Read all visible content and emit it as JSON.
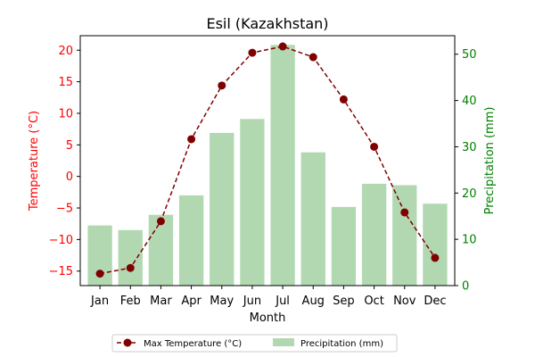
{
  "chart_data": {
    "type": "bar+line",
    "title": "Esil (Kazakhstan)",
    "xlabel": "Month",
    "ylabel_left": "Temperature (°C)",
    "ylabel_right": "Precipitation (mm)",
    "categories": [
      "Jan",
      "Feb",
      "Mar",
      "Apr",
      "May",
      "Jun",
      "Jul",
      "Aug",
      "Sep",
      "Oct",
      "Nov",
      "Dec"
    ],
    "ylim_left": [
      -17.3,
      22.3
    ],
    "ylim_right": [
      0,
      54
    ],
    "yticks_left": [
      -15,
      -10,
      -5,
      0,
      5,
      10,
      15,
      20
    ],
    "yticks_right": [
      0,
      10,
      20,
      30,
      40,
      50
    ],
    "series": [
      {
        "name": "Max Temperature (°C)",
        "type": "line",
        "axis": "left",
        "color": "#800000",
        "linestyle": "dashed",
        "marker": "circle",
        "values": [
          -15.4,
          -14.5,
          -7.1,
          5.9,
          14.4,
          19.6,
          20.6,
          18.9,
          12.2,
          4.7,
          -5.7,
          -12.9
        ]
      },
      {
        "name": "Precipitation (mm)",
        "type": "bar",
        "axis": "right",
        "color": "#b2d8b2",
        "values": [
          13,
          12,
          15.3,
          19.5,
          33,
          36,
          52,
          28.8,
          17,
          22,
          21.7,
          17.7
        ]
      }
    ],
    "left_axis_color": "#ff0000",
    "right_axis_color": "#008000",
    "legend_position": "bottom-center"
  }
}
